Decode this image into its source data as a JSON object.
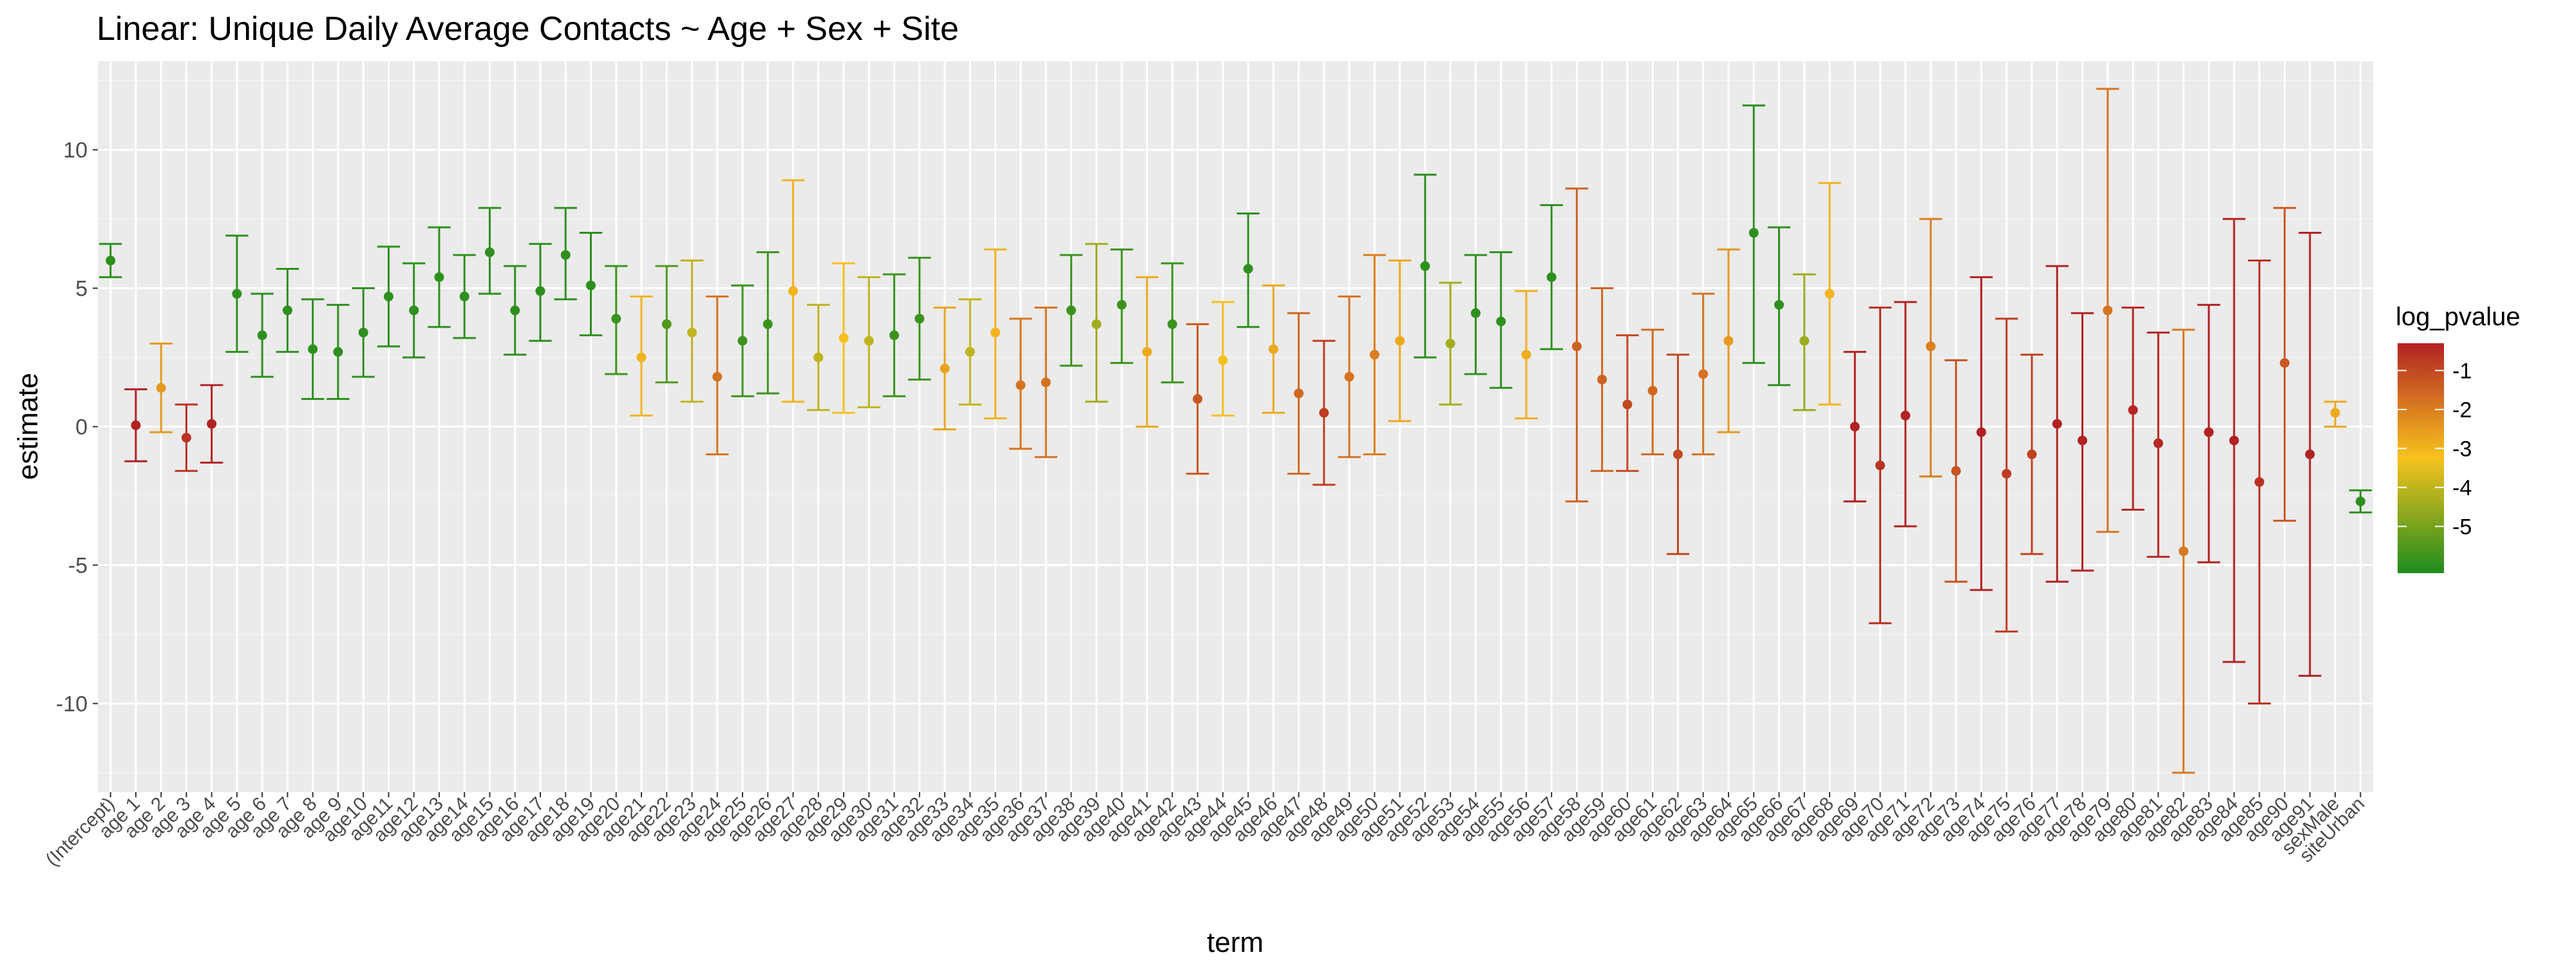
{
  "chart_data": {
    "type": "errorbar-point",
    "title": "Linear: Unique Daily Average Contacts ~ Age + Sex + Site",
    "xlabel": "term",
    "ylabel": "estimate",
    "ylim": [
      -13.2,
      13.2
    ],
    "yticks": [
      -10,
      -5,
      0,
      5,
      10
    ],
    "legend": {
      "title": "log_pvalue",
      "position": "right",
      "range": [
        -6.2,
        -0.3
      ],
      "ticks": [
        -1,
        -2,
        -3,
        -4,
        -5
      ]
    },
    "colors": {
      "low": "#1E8C1E",
      "mid": "#F7C21E",
      "high": "#B22222",
      "grid": "#ffffff",
      "panel": "#EBEBEB"
    },
    "points": [
      {
        "term": "(Intercept)",
        "estimate": 6.0,
        "lower": 5.4,
        "upper": 6.6,
        "log_pvalue": -6.0
      },
      {
        "term": "age 1",
        "estimate": 0.05,
        "lower": -1.25,
        "upper": 1.35,
        "log_pvalue": -0.1
      },
      {
        "term": "age 2",
        "estimate": 1.4,
        "lower": -0.2,
        "upper": 3.0,
        "log_pvalue": -2.5
      },
      {
        "term": "age 3",
        "estimate": -0.4,
        "lower": -1.6,
        "upper": 0.8,
        "log_pvalue": -0.6
      },
      {
        "term": "age 4",
        "estimate": 0.1,
        "lower": -1.3,
        "upper": 1.5,
        "log_pvalue": -0.1
      },
      {
        "term": "age 5",
        "estimate": 4.8,
        "lower": 2.7,
        "upper": 6.9,
        "log_pvalue": -6.0
      },
      {
        "term": "age 6",
        "estimate": 3.3,
        "lower": 1.8,
        "upper": 4.8,
        "log_pvalue": -6.0
      },
      {
        "term": "age 7",
        "estimate": 4.2,
        "lower": 2.7,
        "upper": 5.7,
        "log_pvalue": -6.0
      },
      {
        "term": "age 8",
        "estimate": 2.8,
        "lower": 1.0,
        "upper": 4.6,
        "log_pvalue": -6.0
      },
      {
        "term": "age 9",
        "estimate": 2.7,
        "lower": 1.0,
        "upper": 4.4,
        "log_pvalue": -6.0
      },
      {
        "term": "age10",
        "estimate": 3.4,
        "lower": 1.8,
        "upper": 5.0,
        "log_pvalue": -6.0
      },
      {
        "term": "age11",
        "estimate": 4.7,
        "lower": 2.9,
        "upper": 6.5,
        "log_pvalue": -6.0
      },
      {
        "term": "age12",
        "estimate": 4.2,
        "lower": 2.5,
        "upper": 5.9,
        "log_pvalue": -6.0
      },
      {
        "term": "age13",
        "estimate": 5.4,
        "lower": 3.6,
        "upper": 7.2,
        "log_pvalue": -6.0
      },
      {
        "term": "age14",
        "estimate": 4.7,
        "lower": 3.2,
        "upper": 6.2,
        "log_pvalue": -6.0
      },
      {
        "term": "age15",
        "estimate": 6.3,
        "lower": 4.8,
        "upper": 7.9,
        "log_pvalue": -6.0
      },
      {
        "term": "age16",
        "estimate": 4.2,
        "lower": 2.6,
        "upper": 5.8,
        "log_pvalue": -6.0
      },
      {
        "term": "age17",
        "estimate": 4.9,
        "lower": 3.1,
        "upper": 6.6,
        "log_pvalue": -6.0
      },
      {
        "term": "age18",
        "estimate": 6.2,
        "lower": 4.6,
        "upper": 7.9,
        "log_pvalue": -6.0
      },
      {
        "term": "age19",
        "estimate": 5.1,
        "lower": 3.3,
        "upper": 7.0,
        "log_pvalue": -6.0
      },
      {
        "term": "age20",
        "estimate": 3.9,
        "lower": 1.9,
        "upper": 5.8,
        "log_pvalue": -5.8
      },
      {
        "term": "age21",
        "estimate": 2.5,
        "lower": 0.4,
        "upper": 4.7,
        "log_pvalue": -3.0
      },
      {
        "term": "age22",
        "estimate": 3.7,
        "lower": 1.6,
        "upper": 5.8,
        "log_pvalue": -5.5
      },
      {
        "term": "age23",
        "estimate": 3.4,
        "lower": 0.9,
        "upper": 6.0,
        "log_pvalue": -4.0
      },
      {
        "term": "age24",
        "estimate": 1.8,
        "lower": -1.0,
        "upper": 4.7,
        "log_pvalue": -1.8
      },
      {
        "term": "age25",
        "estimate": 3.1,
        "lower": 1.1,
        "upper": 5.1,
        "log_pvalue": -5.8
      },
      {
        "term": "age26",
        "estimate": 3.7,
        "lower": 1.2,
        "upper": 6.3,
        "log_pvalue": -5.8
      },
      {
        "term": "age27",
        "estimate": 4.9,
        "lower": 0.9,
        "upper": 8.9,
        "log_pvalue": -3.0
      },
      {
        "term": "age28",
        "estimate": 2.5,
        "lower": 0.6,
        "upper": 4.4,
        "log_pvalue": -4.0
      },
      {
        "term": "age29",
        "estimate": 3.2,
        "lower": 0.5,
        "upper": 5.9,
        "log_pvalue": -3.2
      },
      {
        "term": "age30",
        "estimate": 3.1,
        "lower": 0.7,
        "upper": 5.4,
        "log_pvalue": -4.0
      },
      {
        "term": "age31",
        "estimate": 3.3,
        "lower": 1.1,
        "upper": 5.5,
        "log_pvalue": -5.8
      },
      {
        "term": "age32",
        "estimate": 3.9,
        "lower": 1.7,
        "upper": 6.1,
        "log_pvalue": -5.8
      },
      {
        "term": "age33",
        "estimate": 2.1,
        "lower": -0.1,
        "upper": 4.3,
        "log_pvalue": -2.7
      },
      {
        "term": "age34",
        "estimate": 2.7,
        "lower": 0.8,
        "upper": 4.6,
        "log_pvalue": -4.0
      },
      {
        "term": "age35",
        "estimate": 3.4,
        "lower": 0.3,
        "upper": 6.4,
        "log_pvalue": -3.0
      },
      {
        "term": "age36",
        "estimate": 1.5,
        "lower": -0.8,
        "upper": 3.9,
        "log_pvalue": -1.8
      },
      {
        "term": "age37",
        "estimate": 1.6,
        "lower": -1.1,
        "upper": 4.3,
        "log_pvalue": -1.8
      },
      {
        "term": "age38",
        "estimate": 4.2,
        "lower": 2.2,
        "upper": 6.2,
        "log_pvalue": -5.8
      },
      {
        "term": "age39",
        "estimate": 3.7,
        "lower": 0.9,
        "upper": 6.6,
        "log_pvalue": -4.4
      },
      {
        "term": "age40",
        "estimate": 4.4,
        "lower": 2.3,
        "upper": 6.4,
        "log_pvalue": -5.8
      },
      {
        "term": "age41",
        "estimate": 2.7,
        "lower": 0.0,
        "upper": 5.4,
        "log_pvalue": -2.8
      },
      {
        "term": "age42",
        "estimate": 3.7,
        "lower": 1.6,
        "upper": 5.9,
        "log_pvalue": -5.8
      },
      {
        "term": "age43",
        "estimate": 1.0,
        "lower": -1.7,
        "upper": 3.7,
        "log_pvalue": -1.3
      },
      {
        "term": "age44",
        "estimate": 2.4,
        "lower": 0.4,
        "upper": 4.5,
        "log_pvalue": -3.3
      },
      {
        "term": "age45",
        "estimate": 5.7,
        "lower": 3.6,
        "upper": 7.7,
        "log_pvalue": -6.0
      },
      {
        "term": "age46",
        "estimate": 2.8,
        "lower": 0.5,
        "upper": 5.1,
        "log_pvalue": -2.8
      },
      {
        "term": "age47",
        "estimate": 1.2,
        "lower": -1.7,
        "upper": 4.1,
        "log_pvalue": -1.6
      },
      {
        "term": "age48",
        "estimate": 0.5,
        "lower": -2.1,
        "upper": 3.1,
        "log_pvalue": -0.8
      },
      {
        "term": "age49",
        "estimate": 1.8,
        "lower": -1.1,
        "upper": 4.7,
        "log_pvalue": -1.8
      },
      {
        "term": "age50",
        "estimate": 2.6,
        "lower": -1.0,
        "upper": 6.2,
        "log_pvalue": -2.0
      },
      {
        "term": "age51",
        "estimate": 3.1,
        "lower": 0.2,
        "upper": 6.0,
        "log_pvalue": -2.8
      },
      {
        "term": "age52",
        "estimate": 5.8,
        "lower": 2.5,
        "upper": 9.1,
        "log_pvalue": -6.0
      },
      {
        "term": "age53",
        "estimate": 3.0,
        "lower": 0.8,
        "upper": 5.2,
        "log_pvalue": -4.4
      },
      {
        "term": "age54",
        "estimate": 4.1,
        "lower": 1.9,
        "upper": 6.2,
        "log_pvalue": -6.0
      },
      {
        "term": "age55",
        "estimate": 3.8,
        "lower": 1.4,
        "upper": 6.3,
        "log_pvalue": -6.0
      },
      {
        "term": "age56",
        "estimate": 2.6,
        "lower": 0.3,
        "upper": 4.9,
        "log_pvalue": -2.9
      },
      {
        "term": "age57",
        "estimate": 5.4,
        "lower": 2.8,
        "upper": 8.0,
        "log_pvalue": -6.0
      },
      {
        "term": "age58",
        "estimate": 2.9,
        "lower": -2.7,
        "upper": 8.6,
        "log_pvalue": -1.5
      },
      {
        "term": "age59",
        "estimate": 1.7,
        "lower": -1.6,
        "upper": 5.0,
        "log_pvalue": -1.5
      },
      {
        "term": "age60",
        "estimate": 0.8,
        "lower": -1.6,
        "upper": 3.3,
        "log_pvalue": -1.0
      },
      {
        "term": "age61",
        "estimate": 1.3,
        "lower": -1.0,
        "upper": 3.5,
        "log_pvalue": -1.6
      },
      {
        "term": "age62",
        "estimate": -1.0,
        "lower": -4.6,
        "upper": 2.6,
        "log_pvalue": -1.0
      },
      {
        "term": "age63",
        "estimate": 1.9,
        "lower": -1.0,
        "upper": 4.8,
        "log_pvalue": -1.8
      },
      {
        "term": "age64",
        "estimate": 3.1,
        "lower": -0.2,
        "upper": 6.4,
        "log_pvalue": -2.5
      },
      {
        "term": "age65",
        "estimate": 7.0,
        "lower": 2.3,
        "upper": 11.6,
        "log_pvalue": -6.0
      },
      {
        "term": "age66",
        "estimate": 4.4,
        "lower": 1.5,
        "upper": 7.2,
        "log_pvalue": -6.0
      },
      {
        "term": "age67",
        "estimate": 3.1,
        "lower": 0.6,
        "upper": 5.5,
        "log_pvalue": -4.5
      },
      {
        "term": "age68",
        "estimate": 4.8,
        "lower": 0.8,
        "upper": 8.8,
        "log_pvalue": -3.0
      },
      {
        "term": "age69",
        "estimate": 0.0,
        "lower": -2.7,
        "upper": 2.7,
        "log_pvalue": -0.1
      },
      {
        "term": "age70",
        "estimate": -1.4,
        "lower": -7.1,
        "upper": 4.3,
        "log_pvalue": -0.6
      },
      {
        "term": "age71",
        "estimate": 0.4,
        "lower": -3.6,
        "upper": 4.5,
        "log_pvalue": -0.3
      },
      {
        "term": "age72",
        "estimate": 2.9,
        "lower": -1.8,
        "upper": 7.5,
        "log_pvalue": -2.0
      },
      {
        "term": "age73",
        "estimate": -1.6,
        "lower": -5.6,
        "upper": 2.4,
        "log_pvalue": -1.2
      },
      {
        "term": "age74",
        "estimate": -0.2,
        "lower": -5.9,
        "upper": 5.4,
        "log_pvalue": -0.2
      },
      {
        "term": "age75",
        "estimate": -1.7,
        "lower": -7.4,
        "upper": 3.9,
        "log_pvalue": -0.8
      },
      {
        "term": "age76",
        "estimate": -1.0,
        "lower": -4.6,
        "upper": 2.6,
        "log_pvalue": -0.9
      },
      {
        "term": "age77",
        "estimate": 0.1,
        "lower": -5.6,
        "upper": 5.8,
        "log_pvalue": -0.1
      },
      {
        "term": "age78",
        "estimate": -0.5,
        "lower": -5.2,
        "upper": 4.1,
        "log_pvalue": -0.3
      },
      {
        "term": "age79",
        "estimate": 4.2,
        "lower": -3.8,
        "upper": 12.2,
        "log_pvalue": -1.8
      },
      {
        "term": "age80",
        "estimate": 0.6,
        "lower": -3.0,
        "upper": 4.3,
        "log_pvalue": -0.4
      },
      {
        "term": "age81",
        "estimate": -0.6,
        "lower": -4.7,
        "upper": 3.4,
        "log_pvalue": -0.4
      },
      {
        "term": "age82",
        "estimate": -4.5,
        "lower": -12.5,
        "upper": 3.5,
        "log_pvalue": -1.9
      },
      {
        "term": "age83",
        "estimate": -0.2,
        "lower": -4.9,
        "upper": 4.4,
        "log_pvalue": -0.2
      },
      {
        "term": "age84",
        "estimate": -0.5,
        "lower": -8.5,
        "upper": 7.5,
        "log_pvalue": -0.2
      },
      {
        "term": "age85",
        "estimate": -2.0,
        "lower": -10.0,
        "upper": 6.0,
        "log_pvalue": -0.6
      },
      {
        "term": "age90",
        "estimate": 2.3,
        "lower": -3.4,
        "upper": 7.9,
        "log_pvalue": -1.3
      },
      {
        "term": "age91",
        "estimate": -1.0,
        "lower": -9.0,
        "upper": 7.0,
        "log_pvalue": -0.3
      },
      {
        "term": "sexMale",
        "estimate": 0.5,
        "lower": 0.0,
        "upper": 0.9,
        "log_pvalue": -2.8
      },
      {
        "term": "siteUrban",
        "estimate": -2.7,
        "lower": -3.1,
        "upper": -2.3,
        "log_pvalue": -6.0
      }
    ]
  }
}
